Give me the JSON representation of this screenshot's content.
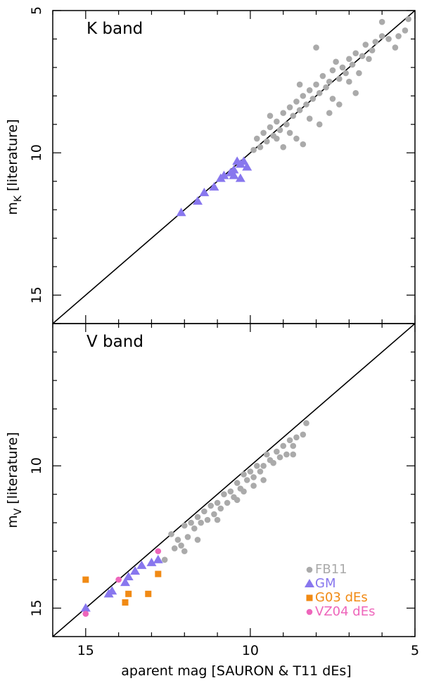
{
  "xlabel": "aparent mag [SAURON & T11 dEs]",
  "legend": [
    {
      "name": "FB11",
      "marker": "circle",
      "color": "#aaaaaa"
    },
    {
      "name": "GM",
      "marker": "triangle",
      "color": "#8877ee"
    },
    {
      "name": "G03 dEs",
      "marker": "square",
      "color": "#f18a14"
    },
    {
      "name": "VZ04 dEs",
      "marker": "circle",
      "color": "#ee66bb"
    }
  ],
  "chart_data": [
    {
      "type": "scatter",
      "label": "K band",
      "ylabel_main": "m",
      "ylabel_sub": "K",
      "ylabel_rest": "[literature]",
      "xlim": [
        16,
        5
      ],
      "ylim": [
        16,
        5
      ],
      "xticks": [
        15,
        10,
        5
      ],
      "yticks": [
        5,
        10,
        15
      ],
      "one_to_one_line": true,
      "series": [
        {
          "name": "FB11",
          "marker": "circle",
          "color": "#aaaaaa",
          "points": [
            [
              5.2,
              5.3
            ],
            [
              5.3,
              5.7
            ],
            [
              5.5,
              5.9
            ],
            [
              5.8,
              6.0
            ],
            [
              6.0,
              5.9
            ],
            [
              6.2,
              6.1
            ],
            [
              6.5,
              6.2
            ],
            [
              6.3,
              6.4
            ],
            [
              6.6,
              6.6
            ],
            [
              6.8,
              6.5
            ],
            [
              7.0,
              6.7
            ],
            [
              6.9,
              6.9
            ],
            [
              7.2,
              7.0
            ],
            [
              7.1,
              7.2
            ],
            [
              7.4,
              6.8
            ],
            [
              7.5,
              7.1
            ],
            [
              7.3,
              7.4
            ],
            [
              7.6,
              7.5
            ],
            [
              7.8,
              7.3
            ],
            [
              7.7,
              7.7
            ],
            [
              8.0,
              7.6
            ],
            [
              7.9,
              7.9
            ],
            [
              8.2,
              7.8
            ],
            [
              8.1,
              8.1
            ],
            [
              8.4,
              8.0
            ],
            [
              8.3,
              8.3
            ],
            [
              8.6,
              8.2
            ],
            [
              8.5,
              8.5
            ],
            [
              8.8,
              8.4
            ],
            [
              8.7,
              8.7
            ],
            [
              9.0,
              8.6
            ],
            [
              8.9,
              9.0
            ],
            [
              9.2,
              8.9
            ],
            [
              9.1,
              9.2
            ],
            [
              9.4,
              9.1
            ],
            [
              9.3,
              9.4
            ],
            [
              9.6,
              9.3
            ],
            [
              9.5,
              9.6
            ],
            [
              9.8,
              9.5
            ],
            [
              9.7,
              9.8
            ],
            [
              8.6,
              9.5
            ],
            [
              8.4,
              9.7
            ],
            [
              9.0,
              9.8
            ],
            [
              7.9,
              9.0
            ],
            [
              7.5,
              8.1
            ],
            [
              8.2,
              8.8
            ],
            [
              9.4,
              8.7
            ],
            [
              7.6,
              8.6
            ],
            [
              6.8,
              7.9
            ],
            [
              8.0,
              6.3
            ],
            [
              6.0,
              5.4
            ],
            [
              5.6,
              6.3
            ],
            [
              7.0,
              7.5
            ],
            [
              8.5,
              7.6
            ],
            [
              9.2,
              9.5
            ],
            [
              6.4,
              6.7
            ],
            [
              8.8,
              9.3
            ],
            [
              7.3,
              8.3
            ],
            [
              6.7,
              7.2
            ],
            [
              9.9,
              9.9
            ]
          ]
        },
        {
          "name": "GM",
          "marker": "triangle",
          "color": "#8877ee",
          "points": [
            [
              12.1,
              12.1
            ],
            [
              11.6,
              11.7
            ],
            [
              11.4,
              11.4
            ],
            [
              11.1,
              11.2
            ],
            [
              10.9,
              10.9
            ],
            [
              10.8,
              10.8
            ],
            [
              10.6,
              10.7
            ],
            [
              10.5,
              10.6
            ],
            [
              10.3,
              10.4
            ],
            [
              10.4,
              10.3
            ],
            [
              10.2,
              10.3
            ],
            [
              10.1,
              10.5
            ],
            [
              10.3,
              10.9
            ],
            [
              10.5,
              10.8
            ]
          ]
        }
      ]
    },
    {
      "type": "scatter",
      "label": "V band",
      "ylabel_main": "m",
      "ylabel_sub": "V",
      "ylabel_rest": "[literature]",
      "xlim": [
        16,
        5
      ],
      "ylim": [
        16,
        5
      ],
      "xticks": [
        15,
        10,
        5
      ],
      "yticks": [
        10,
        15
      ],
      "one_to_one_line": true,
      "series": [
        {
          "name": "FB11",
          "marker": "circle",
          "color": "#aaaaaa",
          "points": [
            [
              8.3,
              8.5
            ],
            [
              8.4,
              8.9
            ],
            [
              8.6,
              9.0
            ],
            [
              8.8,
              9.1
            ],
            [
              8.7,
              9.3
            ],
            [
              9.0,
              9.3
            ],
            [
              9.2,
              9.5
            ],
            [
              9.1,
              9.7
            ],
            [
              9.4,
              9.8
            ],
            [
              9.5,
              9.6
            ],
            [
              9.6,
              10.0
            ],
            [
              9.8,
              10.0
            ],
            [
              9.7,
              10.2
            ],
            [
              10.0,
              10.2
            ],
            [
              9.9,
              10.4
            ],
            [
              10.1,
              10.5
            ],
            [
              10.2,
              10.3
            ],
            [
              10.4,
              10.6
            ],
            [
              10.3,
              10.8
            ],
            [
              10.6,
              10.9
            ],
            [
              10.5,
              11.1
            ],
            [
              10.8,
              11.0
            ],
            [
              10.7,
              11.3
            ],
            [
              11.0,
              11.3
            ],
            [
              10.9,
              11.5
            ],
            [
              11.2,
              11.4
            ],
            [
              11.1,
              11.7
            ],
            [
              11.4,
              11.6
            ],
            [
              11.3,
              11.9
            ],
            [
              11.6,
              11.8
            ],
            [
              11.5,
              12.0
            ],
            [
              11.8,
              12.0
            ],
            [
              11.7,
              12.2
            ],
            [
              12.0,
              12.1
            ],
            [
              11.9,
              12.5
            ],
            [
              12.1,
              12.8
            ],
            [
              12.2,
              12.6
            ],
            [
              12.4,
              12.4
            ],
            [
              11.6,
              12.6
            ],
            [
              10.2,
              10.9
            ],
            [
              9.6,
              10.5
            ],
            [
              8.9,
              9.6
            ],
            [
              9.9,
              10.7
            ],
            [
              12.0,
              13.0
            ],
            [
              12.6,
              13.3
            ],
            [
              12.3,
              12.9
            ],
            [
              9.3,
              9.9
            ],
            [
              10.4,
              11.2
            ],
            [
              11.0,
              11.9
            ],
            [
              8.7,
              9.6
            ]
          ]
        },
        {
          "name": "GM",
          "marker": "triangle",
          "color": "#8877ee",
          "points": [
            [
              15.0,
              15.0
            ],
            [
              14.3,
              14.5
            ],
            [
              14.2,
              14.4
            ],
            [
              13.8,
              14.1
            ],
            [
              13.7,
              13.9
            ],
            [
              13.5,
              13.7
            ],
            [
              13.3,
              13.5
            ],
            [
              13.0,
              13.4
            ],
            [
              12.8,
              13.3
            ]
          ]
        },
        {
          "name": "G03 dEs",
          "marker": "square",
          "color": "#f18a14",
          "points": [
            [
              15.0,
              14.0
            ],
            [
              13.8,
              14.8
            ],
            [
              13.7,
              14.5
            ],
            [
              13.1,
              14.5
            ],
            [
              12.8,
              13.8
            ]
          ]
        },
        {
          "name": "VZ04 dEs",
          "marker": "circle",
          "color": "#ee66bb",
          "points": [
            [
              15.0,
              15.2
            ],
            [
              14.0,
              14.0
            ],
            [
              12.8,
              13.0
            ]
          ]
        }
      ]
    }
  ]
}
